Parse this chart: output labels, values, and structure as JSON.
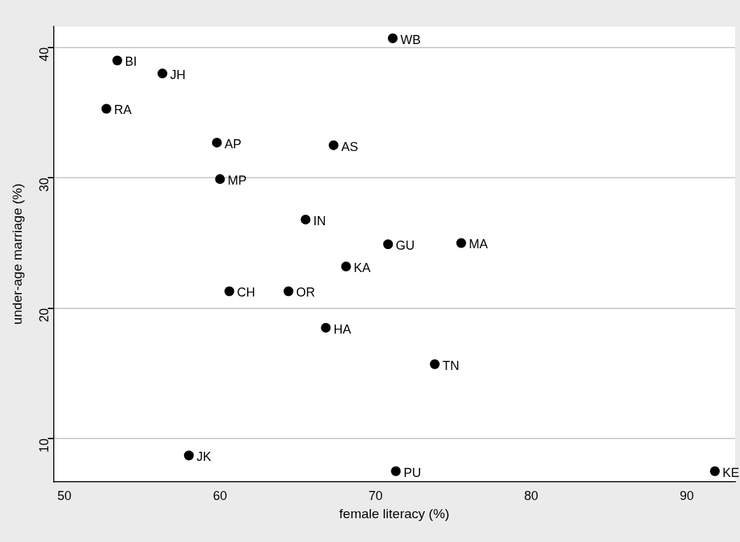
{
  "chart_data": {
    "type": "scatter",
    "xlabel": "female literacy (%)",
    "ylabel": "under-age marriage (%)",
    "x": [
      71.1,
      53.4,
      56.3,
      52.7,
      59.8,
      67.3,
      60.0,
      65.5,
      70.8,
      75.5,
      68.1,
      60.6,
      64.4,
      66.8,
      73.8,
      58.0,
      71.3,
      91.8
    ],
    "values": [
      40.7,
      39.0,
      38.0,
      35.3,
      32.7,
      32.5,
      29.9,
      26.8,
      24.9,
      25.0,
      23.2,
      21.3,
      21.3,
      18.5,
      15.7,
      8.7,
      7.5,
      7.5
    ],
    "color": "#000000",
    "marker": "circle",
    "grid": "y",
    "xlim": [
      49.3,
      93.1
    ],
    "xticks": [
      50,
      60,
      70,
      80,
      90
    ],
    "ylim": [
      6.7,
      41.6
    ],
    "yticks": [
      10,
      20,
      30,
      40
    ],
    "annotations": [
      {
        "text": "WB",
        "x": 71.1,
        "y": 40.7
      },
      {
        "text": "BI",
        "x": 53.4,
        "y": 39.0
      },
      {
        "text": "JH",
        "x": 56.3,
        "y": 38.0
      },
      {
        "text": "RA",
        "x": 52.7,
        "y": 35.3
      },
      {
        "text": "AP",
        "x": 59.8,
        "y": 32.7
      },
      {
        "text": "AS",
        "x": 67.3,
        "y": 32.5
      },
      {
        "text": "MP",
        "x": 60.0,
        "y": 29.9
      },
      {
        "text": "IN",
        "x": 65.5,
        "y": 26.8
      },
      {
        "text": "GU",
        "x": 70.8,
        "y": 24.9
      },
      {
        "text": "MA",
        "x": 75.5,
        "y": 25.0
      },
      {
        "text": "KA",
        "x": 68.1,
        "y": 23.2
      },
      {
        "text": "CH",
        "x": 60.6,
        "y": 21.3
      },
      {
        "text": "OR",
        "x": 64.4,
        "y": 21.3
      },
      {
        "text": "HA",
        "x": 66.8,
        "y": 18.5
      },
      {
        "text": "TN",
        "x": 73.8,
        "y": 15.7
      },
      {
        "text": "JK",
        "x": 58.0,
        "y": 8.7
      },
      {
        "text": "PU",
        "x": 71.3,
        "y": 7.5
      },
      {
        "text": "KE",
        "x": 91.8,
        "y": 7.5
      }
    ]
  }
}
